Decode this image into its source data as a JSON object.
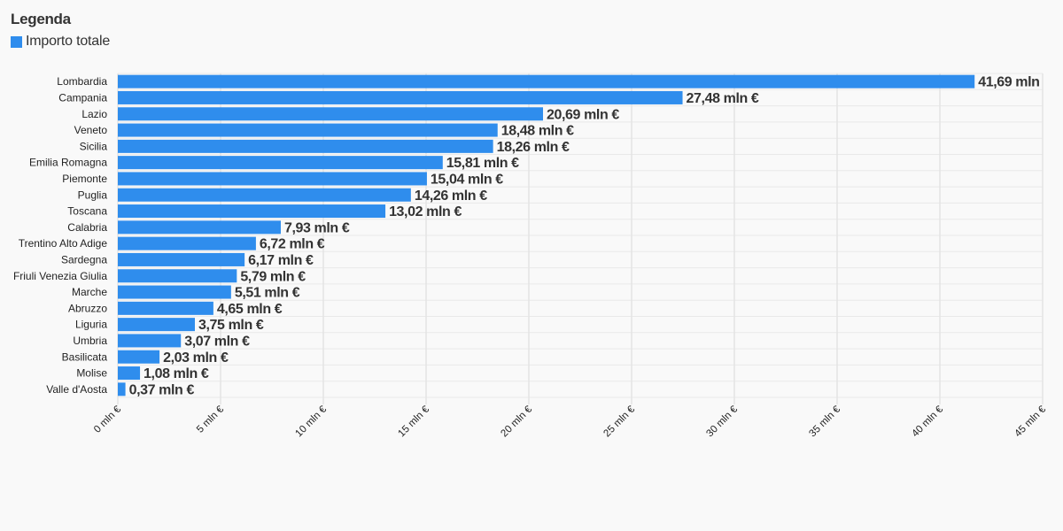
{
  "legend": {
    "title": "Legenda",
    "items": [
      {
        "label": "Importo totale",
        "color": "#2f8ded"
      }
    ]
  },
  "chart_data": {
    "type": "bar",
    "orientation": "horizontal",
    "categories": [
      "Lombardia",
      "Campania",
      "Lazio",
      "Veneto",
      "Sicilia",
      "Emilia Romagna",
      "Piemonte",
      "Puglia",
      "Toscana",
      "Calabria",
      "Trentino Alto Adige",
      "Sardegna",
      "Friuli Venezia Giulia",
      "Marche",
      "Abruzzo",
      "Liguria",
      "Umbria",
      "Basilicata",
      "Molise",
      "Valle d'Aosta"
    ],
    "series": [
      {
        "name": "Importo totale",
        "values": [
          41.69,
          27.48,
          20.69,
          18.48,
          18.26,
          15.81,
          15.04,
          14.26,
          13.02,
          7.93,
          6.72,
          6.17,
          5.79,
          5.51,
          4.65,
          3.75,
          3.07,
          2.03,
          1.08,
          0.37
        ],
        "labels": [
          "41,69 mln",
          "27,48 mln €",
          "20,69 mln €",
          "18,48 mln €",
          "18,26 mln €",
          "15,81 mln €",
          "15,04 mln €",
          "14,26 mln €",
          "13,02 mln €",
          "7,93 mln €",
          "6,72 mln €",
          "6,17 mln €",
          "5,79 mln €",
          "5,51 mln €",
          "4,65 mln €",
          "3,75 mln €",
          "3,07 mln €",
          "2,03 mln €",
          "1,08 mln €",
          "0,37 mln €"
        ]
      }
    ],
    "xlim": [
      0,
      45
    ],
    "ticks": [
      0,
      5,
      10,
      15,
      20,
      25,
      30,
      35,
      40,
      45
    ],
    "tick_labels": [
      "0 mln €",
      "5 mln €",
      "10 mln €",
      "15 mln €",
      "20 mln €",
      "25 mln €",
      "30 mln €",
      "35 mln €",
      "40 mln €",
      "45 mln €"
    ],
    "grid": true,
    "legend_position": "top-left",
    "bar_color": "#2f8ded"
  }
}
